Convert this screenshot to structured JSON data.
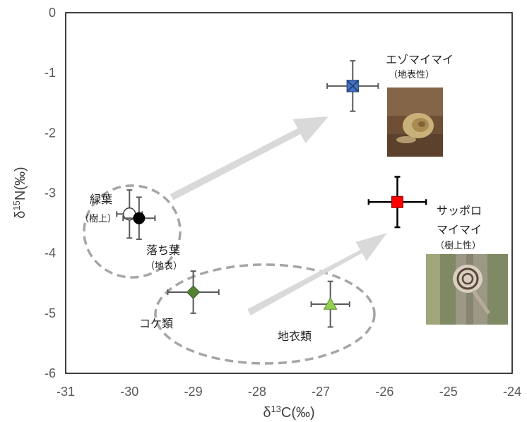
{
  "chart_data": {
    "type": "scatter",
    "xlim": [
      -31,
      -24
    ],
    "ylim": [
      -6,
      0
    ],
    "x_ticks": [
      -31,
      -30,
      -29,
      -28,
      -27,
      -26,
      -25,
      -24
    ],
    "y_ticks": [
      0,
      -1,
      -2,
      -3,
      -4,
      -5,
      -6
    ],
    "xlabel_main": "δ",
    "xlabel_sup": "13",
    "xlabel_rest": "C(‰)",
    "ylabel_main": "δ",
    "ylabel_sup": "15",
    "ylabel_rest": "N(‰)",
    "grid": false,
    "points": [
      {
        "x": -30.0,
        "y": -3.35,
        "xerr": 0.2,
        "yerr": 0.4,
        "marker": "circle-open"
      },
      {
        "x": -29.85,
        "y": -3.42,
        "xerr": 0.25,
        "yerr": 0.35,
        "marker": "circle-filled"
      },
      {
        "x": -29.0,
        "y": -4.65,
        "xerr": 0.4,
        "yerr": 0.35,
        "marker": "diamond"
      },
      {
        "x": -26.85,
        "y": -4.85,
        "xerr": 0.3,
        "yerr": 0.38,
        "marker": "triangle"
      },
      {
        "x": -26.5,
        "y": -1.22,
        "xerr": 0.4,
        "yerr": 0.42,
        "marker": "square-x"
      },
      {
        "x": -25.8,
        "y": -3.15,
        "xerr": 0.45,
        "yerr": 0.42,
        "marker": "square"
      }
    ],
    "annotations": {
      "green_leaf": "緑葉",
      "green_leaf_sub": "（樹上）",
      "fallen_leaf": "落ち葉",
      "fallen_leaf_sub": "（地表）",
      "moss": "コケ類",
      "lichen": "地衣類",
      "ezo": "エゾマイマイ",
      "ezo_sub": "（地表性）",
      "sapporo_1": "サッポロ",
      "sapporo_2": "マイマイ",
      "sapporo_sub": "（樹上性）"
    },
    "colors": {
      "open_circle": "#ffffff",
      "filled_circle": "#000000",
      "diamond": "#548235",
      "triangle": "#92d050",
      "square_x": "#4472c4",
      "square": "#ff0000",
      "square_errbar": "#000000",
      "arrow": "#d9d9d9",
      "ellipse": "#a6a6a6"
    }
  }
}
